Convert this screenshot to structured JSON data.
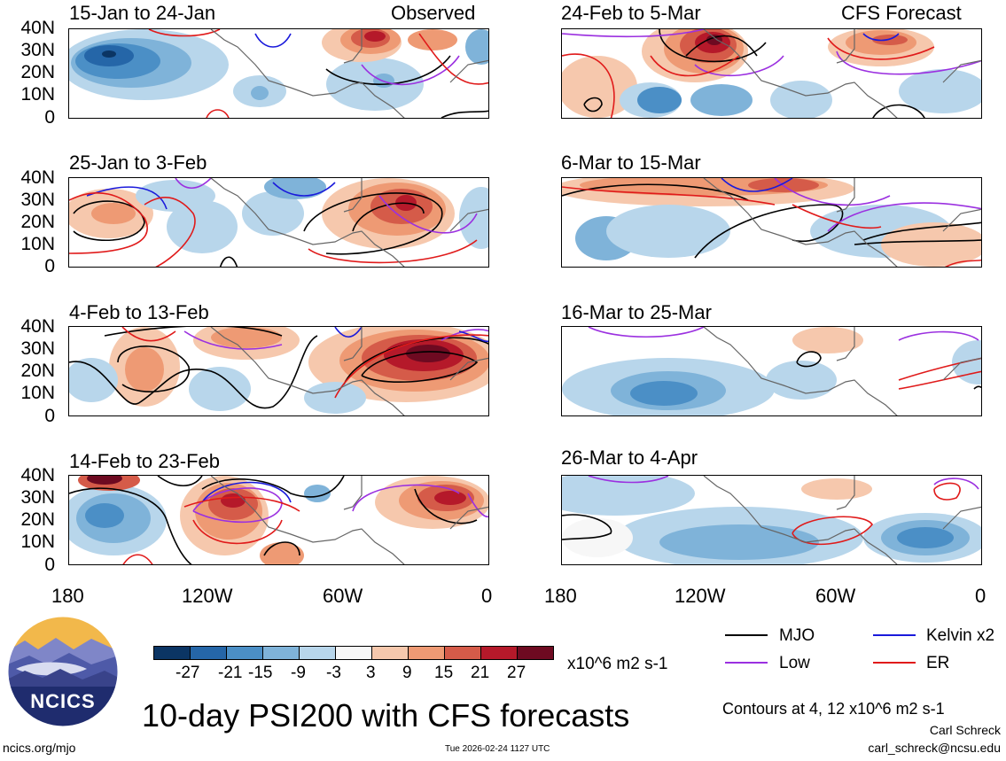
{
  "panels": {
    "p1": {
      "title": "15-Jan to 24-Jan",
      "tag": "Observed"
    },
    "p2": {
      "title": "25-Jan to 3-Feb"
    },
    "p3": {
      "title": "4-Feb to 13-Feb"
    },
    "p4": {
      "title": "14-Feb to 23-Feb"
    },
    "p5": {
      "title": "24-Feb to 5-Mar",
      "tag": "CFS Forecast"
    },
    "p6": {
      "title": "6-Mar to 15-Mar"
    },
    "p7": {
      "title": "16-Mar to 25-Mar"
    },
    "p8": {
      "title": "26-Mar to 4-Apr"
    }
  },
  "y_ticks": [
    "40N",
    "30N",
    "20N",
    "10N",
    "0"
  ],
  "x_ticks": [
    "180",
    "120W",
    "60W",
    "0"
  ],
  "colorbar": {
    "labels": [
      "-27",
      "-21",
      "-15",
      "-9",
      "-3",
      "3",
      "9",
      "15",
      "21",
      "27"
    ],
    "colors": [
      "#0b3564",
      "#2566a8",
      "#4b8fc6",
      "#7fb3d9",
      "#b8d6eb",
      "#f7f7f7",
      "#f6c8ad",
      "#ee9a74",
      "#d55b49",
      "#b5192a",
      "#6e0a21"
    ],
    "units": "x10^6 m2 s-1"
  },
  "legend": {
    "mjo": {
      "label": "MJO",
      "color": "#000000"
    },
    "kelvin": {
      "label": "Kelvin x2",
      "color": "#1a1adb"
    },
    "low": {
      "label": "Low",
      "color": "#9b30e0"
    },
    "er": {
      "label": "ER",
      "color": "#e01a1a"
    }
  },
  "contour_note": "Contours at 4, 12 x10^6 m2 s-1",
  "main_title": "10-day PSI200 with CFS forecasts",
  "logo_text": "NCICS",
  "footer": {
    "site": "ncics.org/mjo",
    "timestamp": "Tue 2026-02-24 1127 UTC",
    "author": "Carl Schreck",
    "email": "carl_schreck@ncsu.edu"
  }
}
